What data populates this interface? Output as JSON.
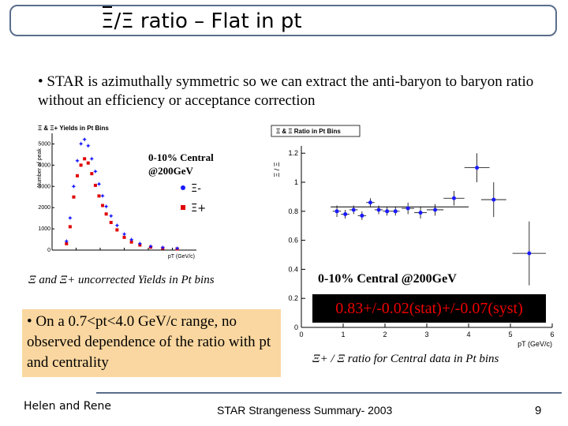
{
  "slide": {
    "title_symbol_bar": "Ξ",
    "title_slash": "/",
    "title_symbol": "Ξ",
    "title_rest": " ratio – Flat in pt",
    "bullet1": "• STAR is azimuthally symmetric so we can extract the anti-baryon to baryon ratio without an efficiency or acceptance correction",
    "caption_left": "Ξ and Ξ+ uncorrected Yields in Pt bins",
    "caption_right": "Ξ+ / Ξ  ratio for Central data in Pt bins",
    "label_central": "0-10% Central @200GeV",
    "ratio_result": "0.83+/-0.02(stat)+/-0.07(syst)",
    "bullet2": "• On a 0.7<pt<4.0 GeV/c range, no observed dependence of the ratio with pt and centrality",
    "footer_left": "Helen and Rene",
    "footer_mid": "STAR Strangeness Summary- 2003",
    "footer_right": "9"
  },
  "colors": {
    "blue": "#1a1aff",
    "red": "#e00000",
    "border": "#5a6e8c",
    "box_orange": "#fad7a0"
  },
  "chart_data": [
    {
      "type": "scatter",
      "title": "Ξ & Ξ+ Yields in Pt Bins",
      "xlabel": "pT (GeV/c)",
      "ylabel": "Number of peak",
      "xlim": [
        0,
        6
      ],
      "ylim": [
        0,
        5500
      ],
      "yticks": [
        0,
        1000,
        2000,
        3000,
        4000,
        5000
      ],
      "xticks": [
        0,
        1,
        2,
        3,
        4,
        5
      ],
      "legend": {
        "title_line1": "0-10% Central",
        "title_line2": "@200GeV",
        "position": "top-right"
      },
      "series": [
        {
          "name": "Ξ-",
          "marker": "star",
          "color": "#1a1aff",
          "x": [
            0.6,
            0.75,
            0.9,
            1.05,
            1.2,
            1.35,
            1.5,
            1.65,
            1.8,
            1.95,
            2.1,
            2.25,
            2.45,
            2.7,
            3.0,
            3.3,
            3.65,
            4.1,
            4.6,
            5.2
          ],
          "y": [
            400,
            1500,
            3000,
            4200,
            5000,
            5200,
            4900,
            4300,
            3700,
            3100,
            2550,
            2050,
            1600,
            1150,
            750,
            480,
            300,
            170,
            110,
            70
          ]
        },
        {
          "name": "Ξ+",
          "marker": "square",
          "color": "#e00000",
          "x": [
            0.6,
            0.75,
            0.9,
            1.05,
            1.2,
            1.35,
            1.5,
            1.65,
            1.8,
            1.95,
            2.1,
            2.25,
            2.45,
            2.7,
            3.0,
            3.3,
            3.65,
            4.1,
            4.6,
            5.2
          ],
          "y": [
            300,
            1100,
            2500,
            3500,
            4000,
            4300,
            4100,
            3600,
            3050,
            2550,
            2100,
            1700,
            1300,
            950,
            600,
            380,
            240,
            140,
            90,
            55
          ]
        }
      ]
    },
    {
      "type": "scatter",
      "title": "Ξ & Ξ Ratio in Pt Bins",
      "xlabel": "pT (GeV/c)",
      "ylabel": "Ξ / Ξ",
      "xlim": [
        0,
        6
      ],
      "ylim": [
        0,
        1.25
      ],
      "yticks": [
        0,
        0.2,
        0.4,
        0.6,
        0.8,
        1,
        1.2
      ],
      "xticks": [
        0,
        1,
        2,
        3,
        4,
        5,
        6
      ],
      "fit_value": 0.83,
      "series": [
        {
          "name": "ratio",
          "marker": "circle",
          "color": "#1a1aff",
          "x": [
            0.85,
            1.05,
            1.25,
            1.45,
            1.65,
            1.85,
            2.05,
            2.25,
            2.55,
            2.85,
            3.2,
            3.65,
            4.2,
            4.6,
            5.45
          ],
          "y": [
            0.8,
            0.78,
            0.81,
            0.77,
            0.86,
            0.81,
            0.8,
            0.8,
            0.82,
            0.79,
            0.81,
            0.89,
            1.1,
            0.88,
            0.51
          ],
          "yerr": [
            0.04,
            0.03,
            0.03,
            0.03,
            0.03,
            0.03,
            0.03,
            0.03,
            0.04,
            0.04,
            0.04,
            0.05,
            0.1,
            0.12,
            0.22
          ],
          "xerr": [
            0.1,
            0.1,
            0.1,
            0.1,
            0.1,
            0.1,
            0.1,
            0.1,
            0.15,
            0.15,
            0.2,
            0.25,
            0.3,
            0.3,
            0.4
          ]
        }
      ]
    }
  ]
}
